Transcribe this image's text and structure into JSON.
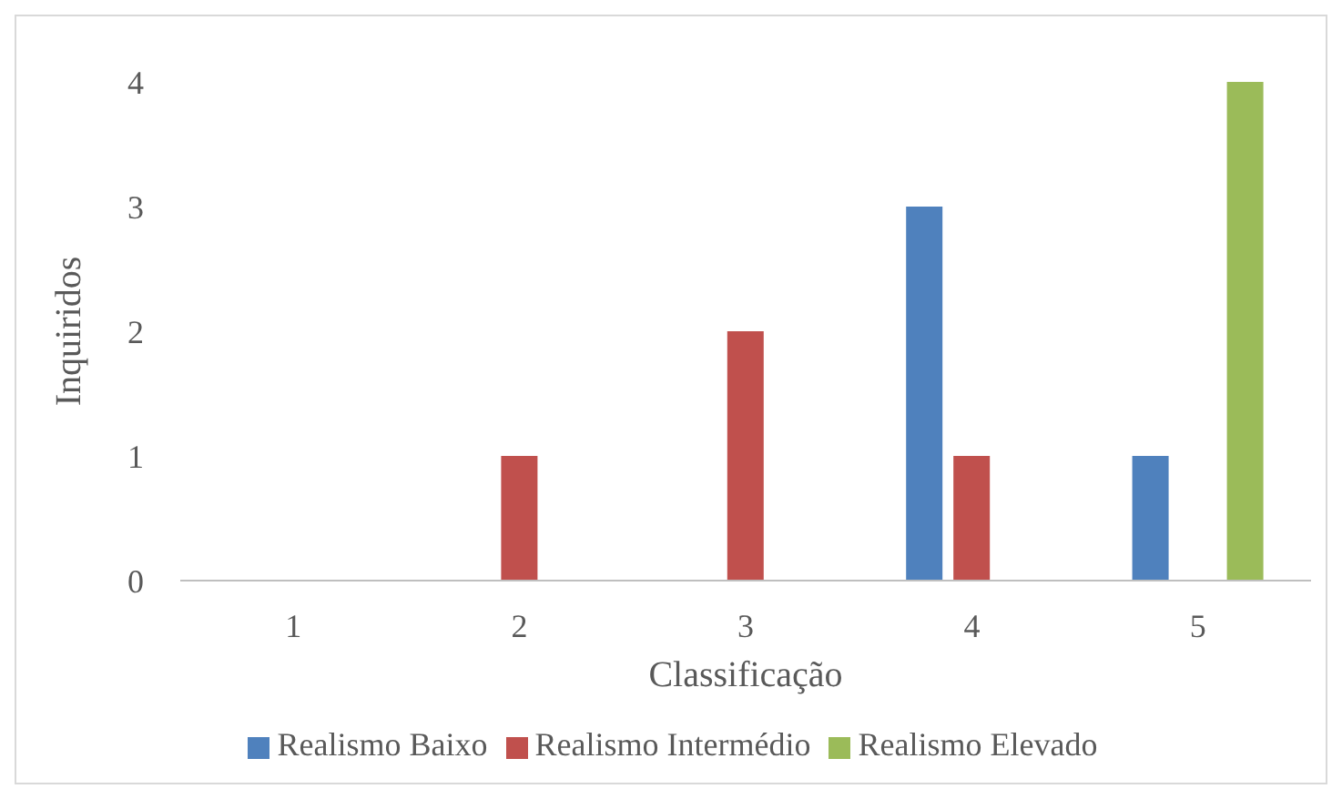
{
  "chart_data": {
    "type": "bar",
    "xlabel": "Classificação",
    "ylabel": "Inquiridos",
    "categories": [
      "1",
      "2",
      "3",
      "4",
      "5"
    ],
    "series": [
      {
        "name": "Realismo Baixo",
        "color": "#4f81bd",
        "values": [
          0,
          0,
          0,
          3,
          1
        ]
      },
      {
        "name": "Realismo Intermédio",
        "color": "#c0504d",
        "values": [
          0,
          1,
          2,
          1,
          0
        ]
      },
      {
        "name": "Realismo Elevado",
        "color": "#9bbb59",
        "values": [
          0,
          0,
          0,
          0,
          4
        ]
      }
    ],
    "ylim": [
      0,
      4
    ],
    "yticks": [
      0,
      1,
      2,
      3,
      4
    ],
    "grid": false,
    "legend": "bottom"
  }
}
